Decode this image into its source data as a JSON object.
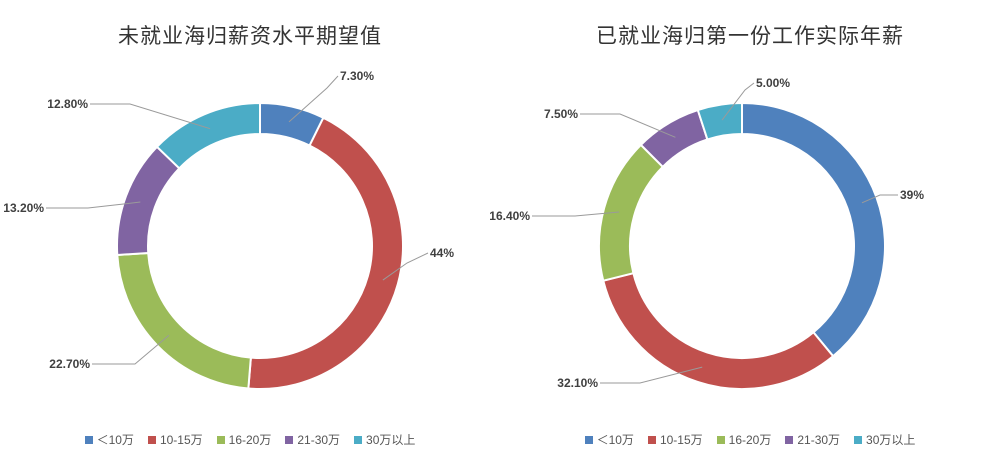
{
  "chart_data": [
    {
      "type": "pie",
      "title": "未就业海归薪资水平期望值",
      "categories": [
        "＜10万",
        "10-15万",
        "16-20万",
        "21-30万",
        "30万以上"
      ],
      "values": [
        7.3,
        44,
        22.7,
        13.2,
        12.8
      ],
      "data_labels": [
        "7.30%",
        "44%",
        "22.70%",
        "13.20%",
        "12.80%"
      ],
      "colors": [
        "#4f81bd",
        "#c0504d",
        "#9bbb59",
        "#8064a2",
        "#4bacc6"
      ],
      "legend": "bottom",
      "style": "doughnut"
    },
    {
      "type": "pie",
      "title": "已就业海归第一份工作实际年薪",
      "categories": [
        "＜10万",
        "10-15万",
        "16-20万",
        "21-30万",
        "30万以上"
      ],
      "values": [
        39,
        32.1,
        16.4,
        7.5,
        5.0
      ],
      "data_labels": [
        "39%",
        "32.10%",
        "16.40%",
        "7.50%",
        "5.00%"
      ],
      "colors": [
        "#4f81bd",
        "#c0504d",
        "#9bbb59",
        "#8064a2",
        "#4bacc6"
      ],
      "legend": "bottom",
      "style": "doughnut"
    }
  ]
}
